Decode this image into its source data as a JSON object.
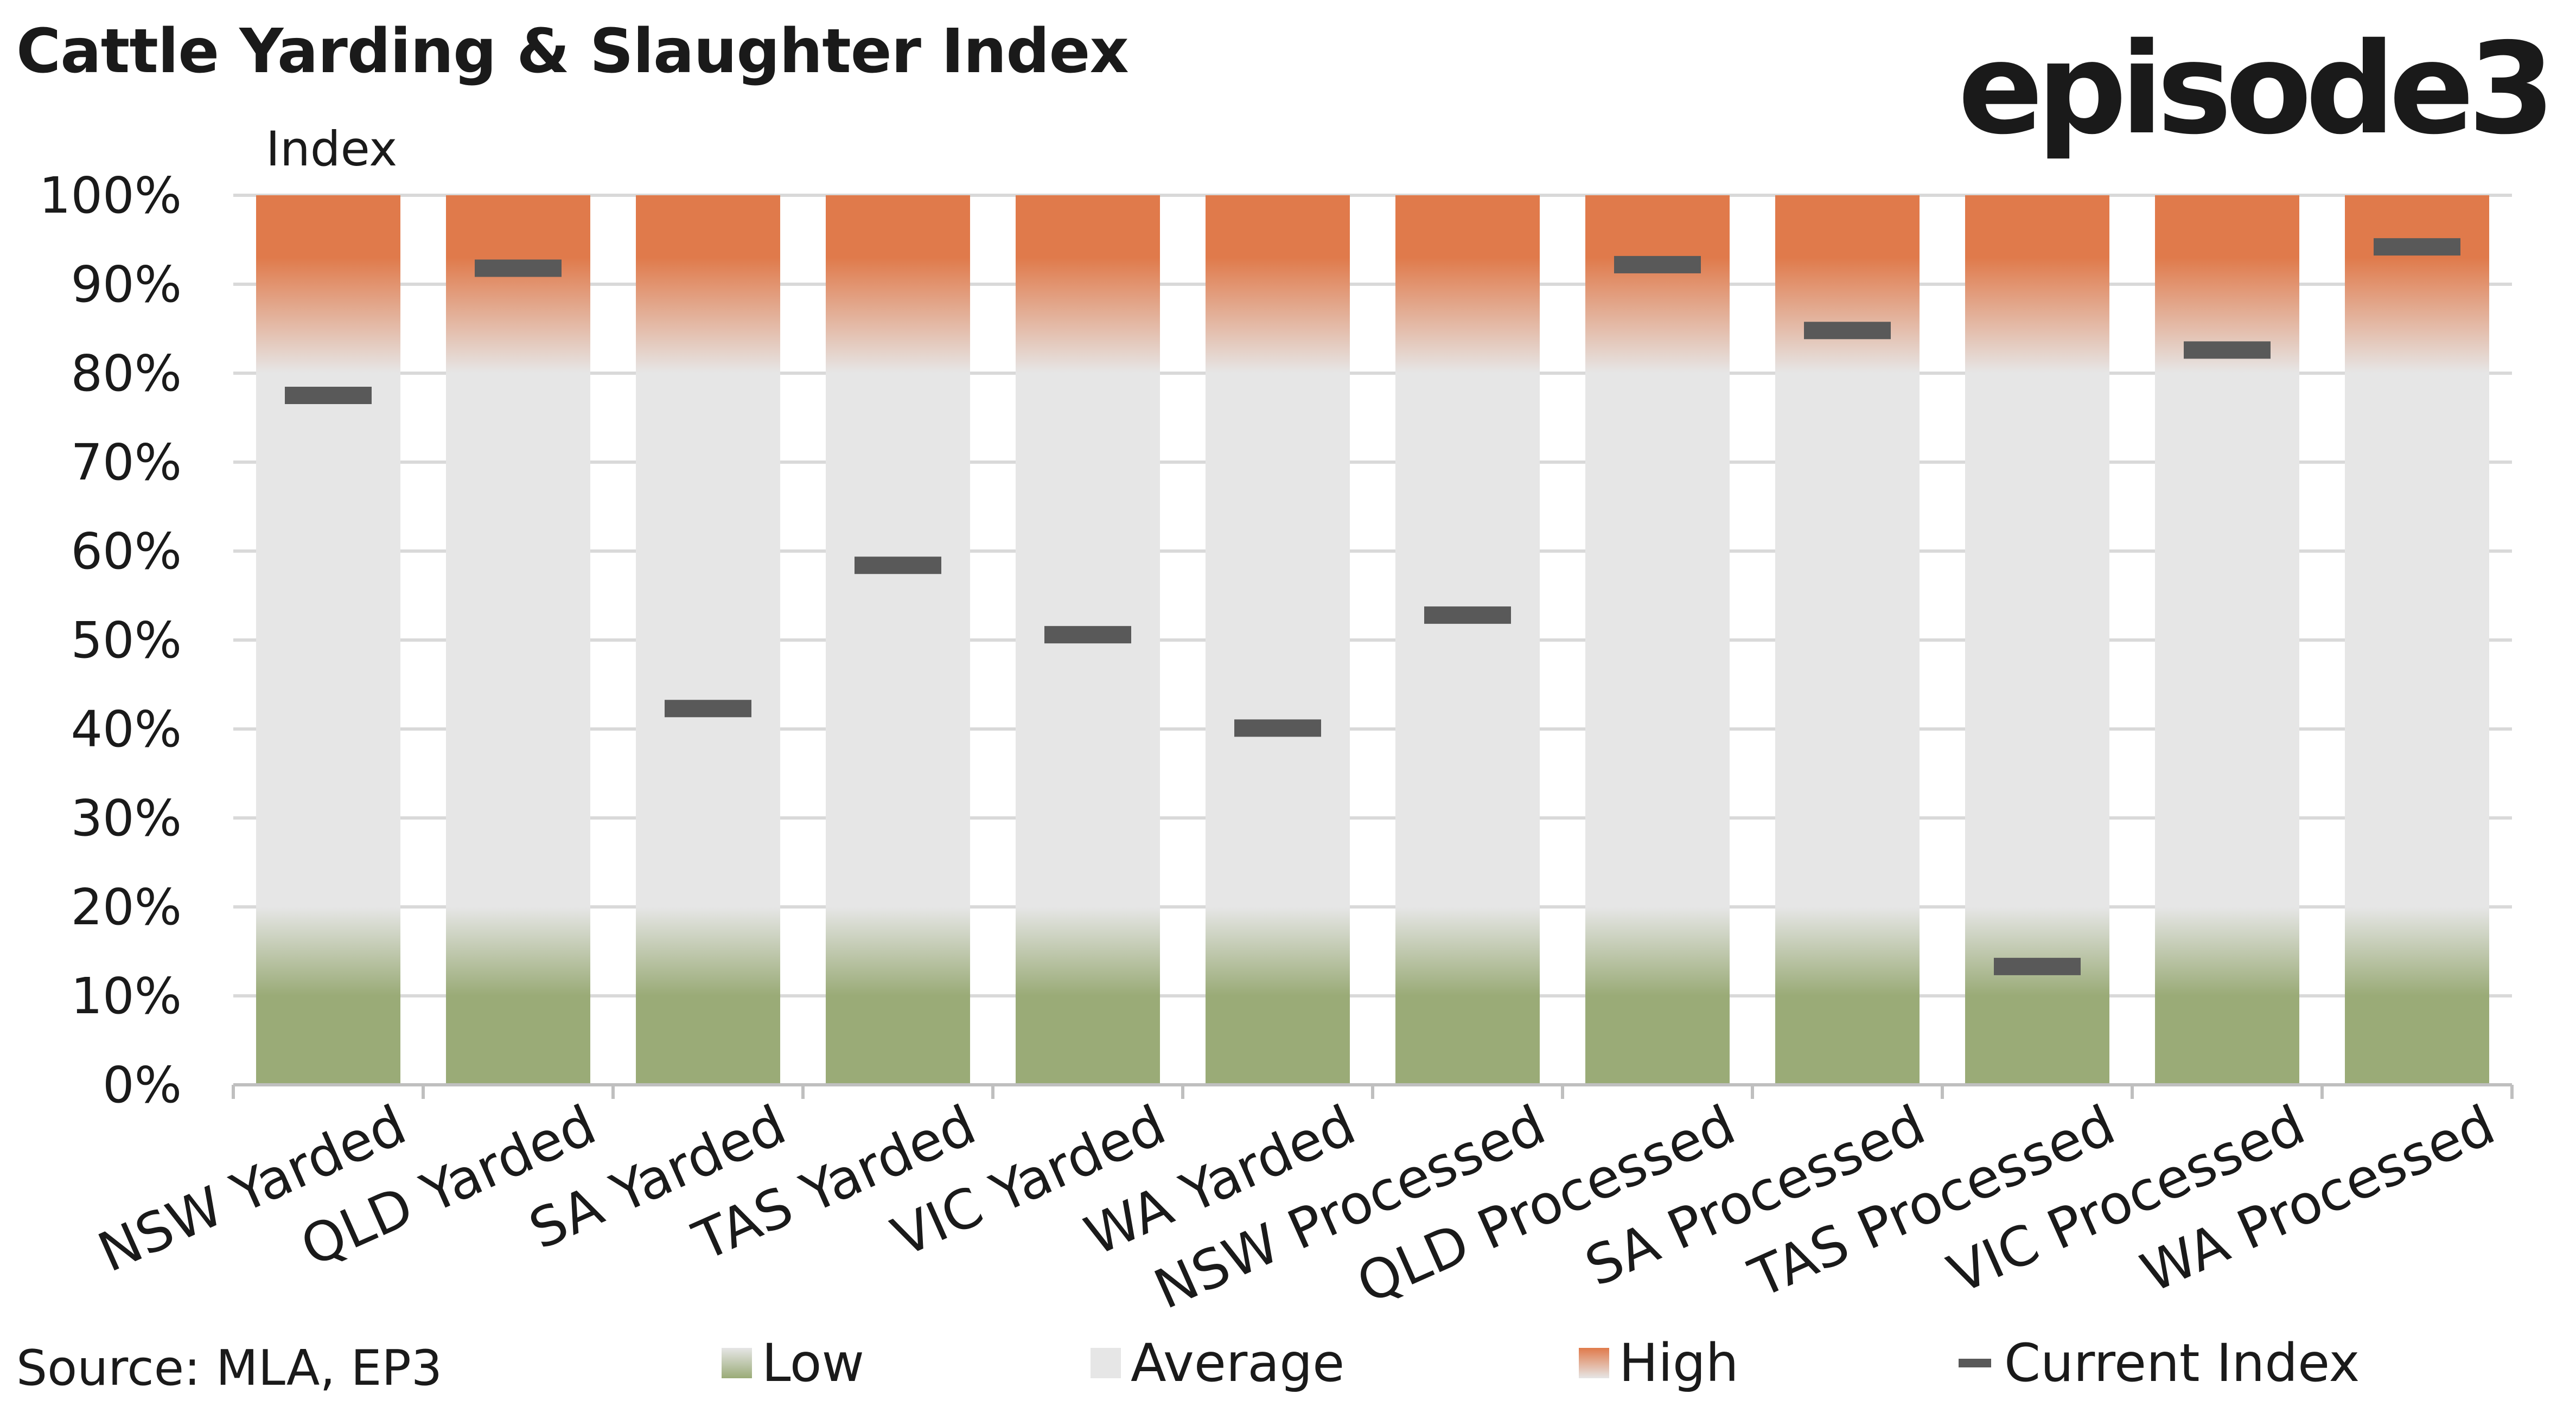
{
  "title": "Cattle Yarding & Slaughter Index",
  "logo": "episode3",
  "source": "Source: MLA, EP3",
  "colors": {
    "low": "#9aab77",
    "average": "#e6e6e6",
    "high": "#e07a4b",
    "marker": "#595959",
    "grid": "#d9d9d9"
  },
  "legend": {
    "low": "Low",
    "average": "Average",
    "high": "High",
    "current": "Current Index"
  },
  "chart_data": {
    "type": "bar",
    "title": "Cattle Yarding & Slaughter Index",
    "ylabel": "Index",
    "xlabel": "",
    "ylim": [
      0,
      100
    ],
    "yticks": [
      0,
      10,
      20,
      30,
      40,
      50,
      60,
      70,
      80,
      90,
      100
    ],
    "ytick_labels": [
      "0%",
      "10%",
      "20%",
      "30%",
      "40%",
      "50%",
      "60%",
      "70%",
      "80%",
      "90%",
      "100%"
    ],
    "bands": [
      {
        "name": "Low",
        "from": 0,
        "to": 20
      },
      {
        "name": "Average",
        "from": 20,
        "to": 80
      },
      {
        "name": "High",
        "from": 80,
        "to": 100
      }
    ],
    "categories": [
      "NSW Yarded",
      "QLD Yarded",
      "SA Yarded",
      "TAS Yarded",
      "VIC Yarded",
      "WA Yarded",
      "NSW Processed",
      "QLD Processed",
      "SA Processed",
      "TAS Processed",
      "VIC Processed",
      "WA Processed"
    ],
    "series": [
      {
        "name": "Current Index",
        "values": [
          77.5,
          91.8,
          42.3,
          58.4,
          50.6,
          40.1,
          52.8,
          92.2,
          84.8,
          13.3,
          82.6,
          94.2
        ]
      }
    ],
    "grid": true,
    "legend_position": "bottom"
  }
}
